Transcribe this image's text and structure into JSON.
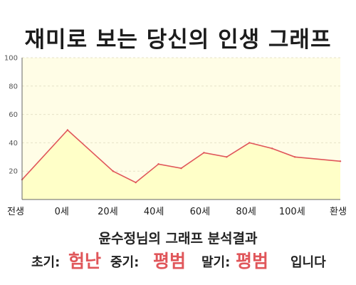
{
  "title": "재미로 보는 당신의 인생 그래프",
  "subtitle": "윤수정님의 그래프 분석결과",
  "result": {
    "early_label": "초기:",
    "early_value": "험난",
    "middle_label": "중기:",
    "middle_value": "평범",
    "late_label": "말기:",
    "late_value": "평범",
    "suffix": "입니다"
  },
  "colors": {
    "line": "#e0565a",
    "fill": "#ffffc8",
    "plot_background": "#fffde6",
    "accent_text": "#e0565a"
  },
  "chart_data": {
    "type": "area",
    "categories": [
      "전생",
      "0세",
      "20세",
      "40세",
      "60세",
      "80세",
      "100세",
      "환생"
    ],
    "x": [
      -20,
      0,
      20,
      30,
      40,
      50,
      60,
      70,
      80,
      90,
      100,
      120
    ],
    "values": [
      14,
      49,
      20,
      12,
      25,
      22,
      33,
      30,
      40,
      36,
      30,
      27
    ],
    "y_ticks": [
      "100",
      "80",
      "60",
      "40",
      "20"
    ],
    "ylim": [
      0,
      100
    ],
    "xlim": [
      -20,
      120
    ],
    "grid": true,
    "title": "",
    "xlabel": "",
    "ylabel": ""
  }
}
